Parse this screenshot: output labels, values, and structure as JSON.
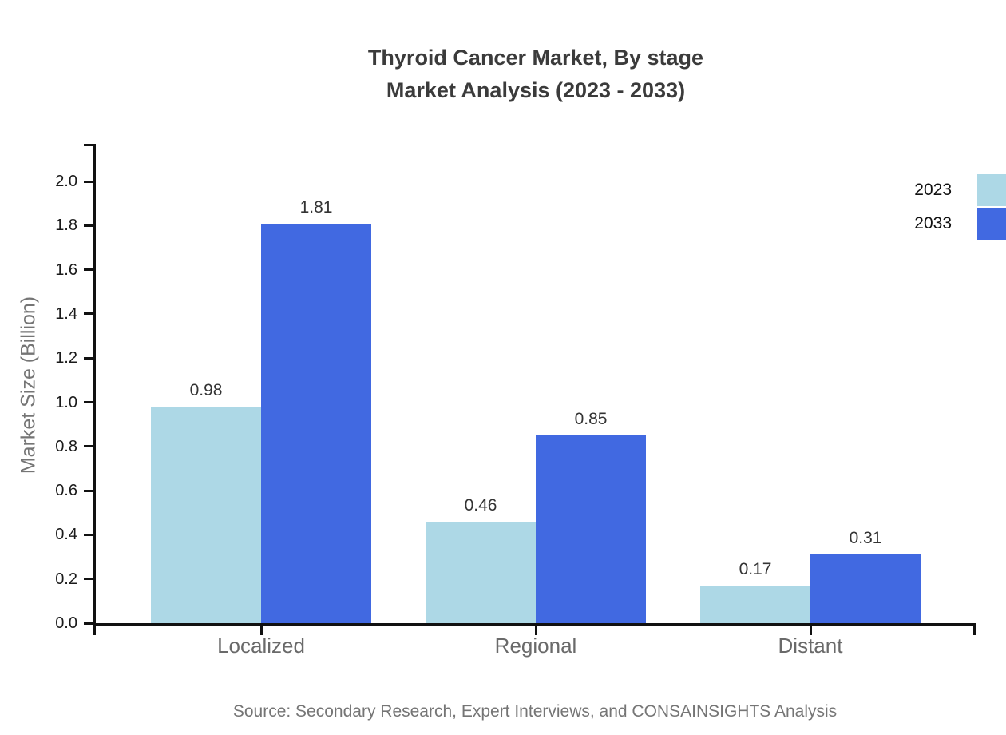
{
  "chart_data": {
    "type": "bar",
    "title": "Thyroid Cancer Market, By stage",
    "subtitle": "Market Analysis (2023 - 2033)",
    "ylabel": "Market Size (Billion)",
    "xlabel": "",
    "categories": [
      "Localized",
      "Regional",
      "Distant"
    ],
    "series": [
      {
        "name": "2023",
        "color": "#ADD8E6",
        "values": [
          0.98,
          0.46,
          0.17
        ]
      },
      {
        "name": "2033",
        "color": "#4169E1",
        "values": [
          1.81,
          0.85,
          0.31
        ]
      }
    ],
    "value_labels": [
      [
        "0.98",
        "0.46",
        "0.17"
      ],
      [
        "1.81",
        "0.85",
        "0.31"
      ]
    ],
    "ylim": [
      0.0,
      2.0
    ],
    "ytick_step": 0.2,
    "ytick_labels": [
      "0.0",
      "0.2",
      "0.4",
      "0.6",
      "0.8",
      "1.0",
      "1.2",
      "1.4",
      "1.6",
      "1.8",
      "2.0"
    ],
    "grid": false,
    "legend_position": "top-right",
    "source": "Source: Secondary Research, Expert Interviews, and CONSAINSIGHTS Analysis"
  },
  "colors": {
    "series_2023": "#ADD8E6",
    "series_2033": "#4169E1",
    "axis": "#111111",
    "title_text": "#3b3b3b",
    "axis_label_text": "#757575",
    "category_text": "#6a6a6a",
    "value_text": "#333333",
    "background": "#ffffff"
  }
}
